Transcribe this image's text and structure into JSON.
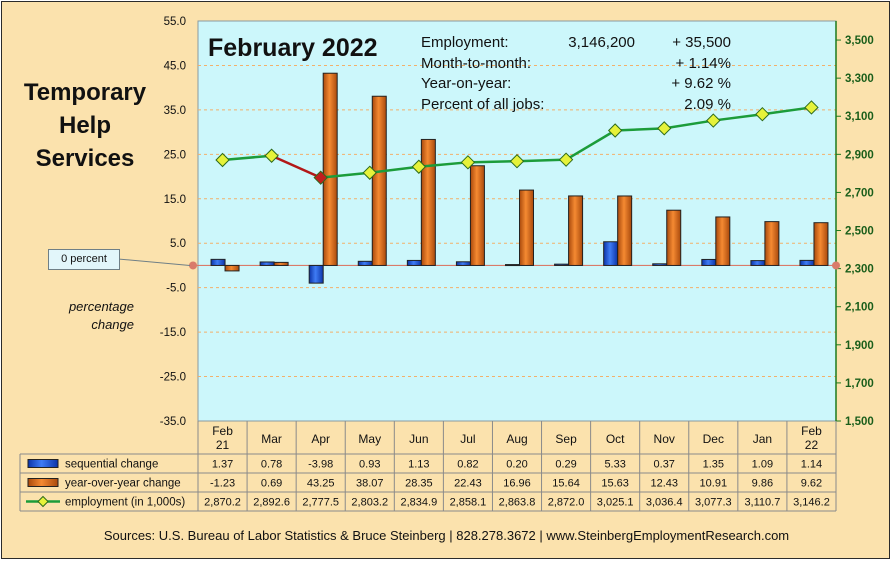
{
  "side_title": [
    "Temporary",
    "Help",
    "Services"
  ],
  "percentage_label": [
    "percentage",
    "change"
  ],
  "zero_callout": "0 percent",
  "stats": {
    "employment_label": "Employment:",
    "employment_value": "3,146,200",
    "employment_change": "+   35,500",
    "mtm_label": "Month-to-month:",
    "mtm_value": "+   1.14%",
    "yoy_label": "Year-on-year:",
    "yoy_value": "+  9.62 %",
    "share_label": "Percent of all jobs:",
    "share_value": "2.09 %"
  },
  "sources": "Sources: U.S. Bureau of Labor Statistics & Bruce Steinberg | 828.278.3672  |  www.SteinbergEmploymentResearch.com",
  "colors": {
    "background": "#fbe2ad",
    "plot_area": "#ccf7fb",
    "sequential_bar": "#1f55dd",
    "yoy_bar": "#e2701c",
    "employment_line": "#1c9c3a",
    "employment_line_decline": "#b21818",
    "marker_fill": "#e6f23a",
    "marker_decline": "#c21e1e",
    "right_axis": "#1c7a1c",
    "zero_line": "#d97b6a"
  },
  "chart_data": {
    "type": "bar",
    "title": "February 2022",
    "categories": [
      [
        "Feb",
        "21"
      ],
      [
        "Mar"
      ],
      [
        "Apr"
      ],
      [
        "May"
      ],
      [
        "Jun"
      ],
      [
        "Jul"
      ],
      [
        "Aug"
      ],
      [
        "Sep"
      ],
      [
        "Oct"
      ],
      [
        "Nov"
      ],
      [
        "Dec"
      ],
      [
        "Jan"
      ],
      [
        "Feb",
        "22"
      ]
    ],
    "left_axis": {
      "ylim": [
        -35,
        55
      ],
      "ticks": [
        55,
        45,
        35,
        25,
        15,
        5,
        -5,
        -15,
        -25,
        -35
      ],
      "tick_labels": [
        "55.0",
        "45.0",
        "35.0",
        "25.0",
        "15.0",
        "5.0",
        "-5.0",
        "-15.0",
        "-25.0",
        "-35.0"
      ]
    },
    "right_axis": {
      "ylim": [
        1500,
        3600
      ],
      "ticks": [
        3500,
        3300,
        3100,
        2900,
        2700,
        2500,
        2300,
        2100,
        1900,
        1700,
        1500
      ],
      "tick_labels": [
        "3,500",
        "3,300",
        "3,100",
        "2,900",
        "2,700",
        "2,500",
        "2,300",
        "2,100",
        "1,900",
        "1,700",
        "1,500"
      ]
    },
    "series": [
      {
        "name": "sequential change",
        "type": "bar",
        "axis": "left",
        "values": [
          1.37,
          0.78,
          -3.98,
          0.93,
          1.13,
          0.82,
          0.2,
          0.29,
          5.33,
          0.37,
          1.35,
          1.09,
          1.14
        ],
        "labels": [
          "1.37",
          "0.78",
          "-3.98",
          "0.93",
          "1.13",
          "0.82",
          "0.20",
          "0.29",
          "5.33",
          "0.37",
          "1.35",
          "1.09",
          "1.14"
        ]
      },
      {
        "name": "year-over-year change",
        "type": "bar",
        "axis": "left",
        "values": [
          -1.23,
          0.69,
          43.25,
          38.07,
          28.35,
          22.43,
          16.96,
          15.64,
          15.63,
          12.43,
          10.91,
          9.86,
          9.62
        ],
        "labels": [
          "-1.23",
          "0.69",
          "43.25",
          "38.07",
          "28.35",
          "22.43",
          "16.96",
          "15.64",
          "15.63",
          "12.43",
          "10.91",
          "9.86",
          "9.62"
        ]
      },
      {
        "name": "employment (in 1,000s)",
        "type": "line",
        "axis": "right",
        "values": [
          2870.2,
          2892.6,
          2777.5,
          2803.2,
          2834.9,
          2858.1,
          2863.8,
          2872.0,
          3025.1,
          3036.4,
          3077.3,
          3110.7,
          3146.2
        ],
        "labels": [
          "2,870.2",
          "2,892.6",
          "2,777.5",
          "2,803.2",
          "2,834.9",
          "2,858.1",
          "2,863.8",
          "2,872.0",
          "3,025.1",
          "3,036.4",
          "3,077.3",
          "3,110.7",
          "3,146.2"
        ]
      }
    ],
    "grid": true,
    "legend": "data table below chart"
  }
}
